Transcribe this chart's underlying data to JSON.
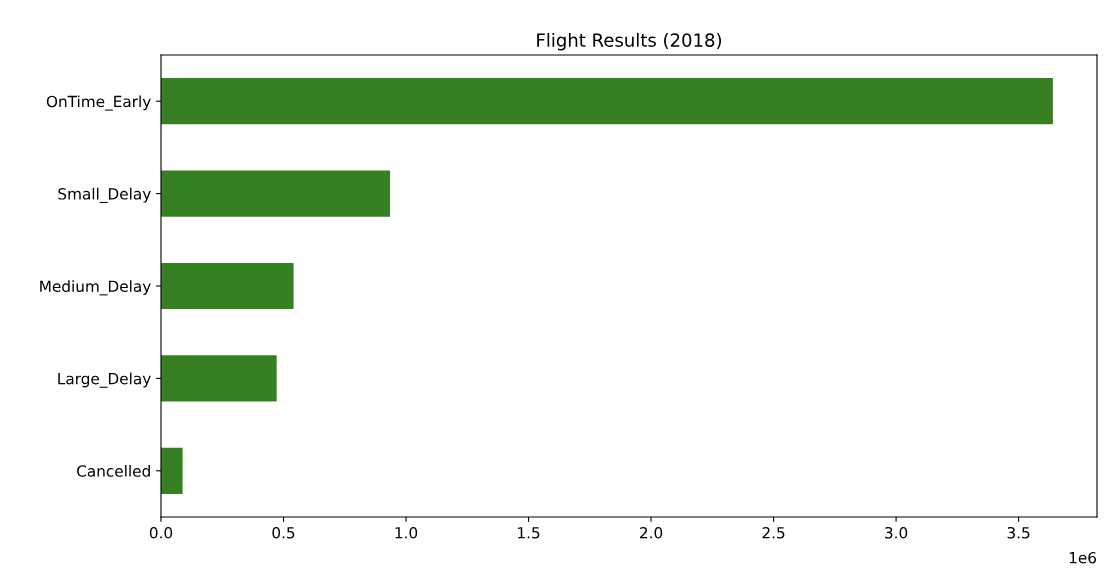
{
  "chart_data": {
    "type": "bar",
    "orientation": "horizontal",
    "title": "Flight Results (2018)",
    "categories": [
      "OnTime_Early",
      "Small_Delay",
      "Medium_Delay",
      "Large_Delay",
      "Cancelled"
    ],
    "values": [
      3.64,
      0.935,
      0.541,
      0.472,
      0.088
    ],
    "color": "#367f22",
    "xlim": [
      0,
      3.82
    ],
    "xticks": [
      {
        "value": 0,
        "label": "0.0"
      },
      0.5,
      {
        "value": 1,
        "label": "1.0"
      },
      1.5,
      {
        "value": 2,
        "label": "2.0"
      },
      2.5,
      {
        "value": 3,
        "label": "3.0"
      },
      3.5
    ],
    "annotations": [
      "1e6"
    ],
    "grid": false,
    "legend": false
  }
}
